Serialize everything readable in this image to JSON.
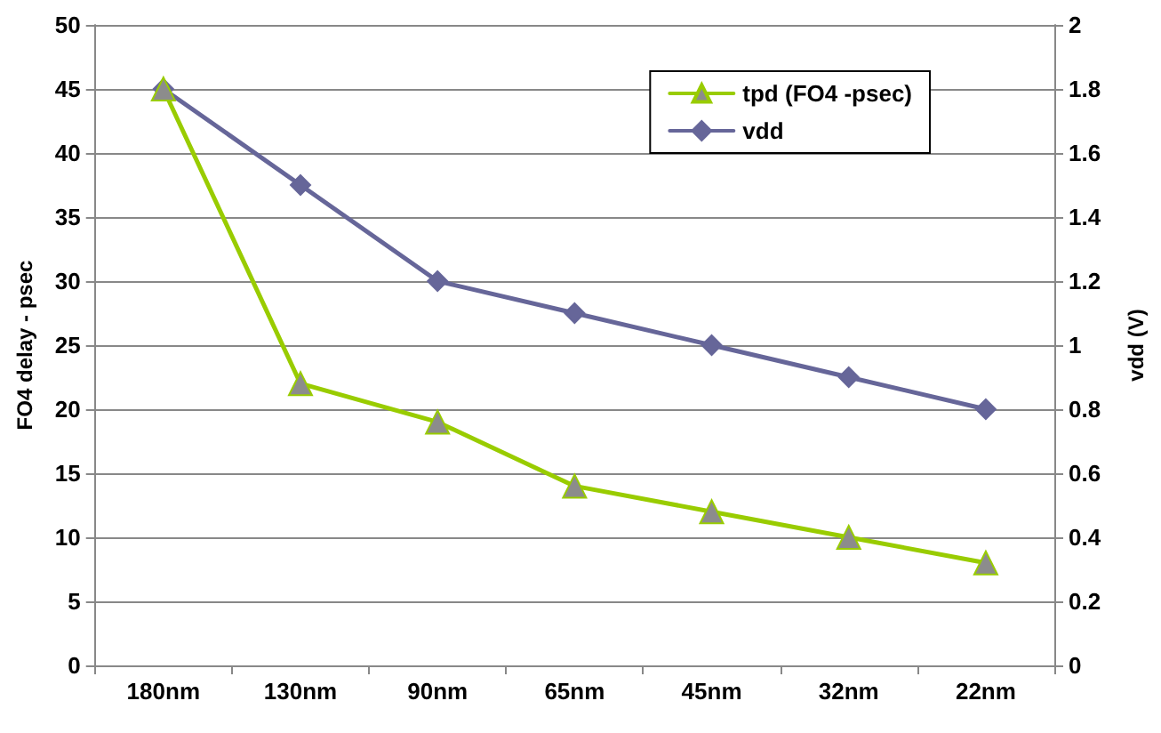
{
  "chart_data": {
    "type": "line",
    "categories": [
      "180nm",
      "130nm",
      "90nm",
      "65nm",
      "45nm",
      "32nm",
      "22nm"
    ],
    "ylabel": "FO4 delay - psec",
    "y2label": "vdd (V)",
    "ylim": [
      0,
      50
    ],
    "yticks": [
      0,
      5,
      10,
      15,
      20,
      25,
      30,
      35,
      40,
      45,
      50
    ],
    "y2lim": [
      0,
      2
    ],
    "y2ticks": [
      0,
      0.2,
      0.4,
      0.6,
      0.8,
      1,
      1.2,
      1.4,
      1.6,
      1.8,
      2
    ],
    "grid": "y",
    "legend": "top right",
    "series": [
      {
        "name": "tpd (FO4 -psec)",
        "color": "#99cc00",
        "marker": "triangle",
        "values": [
          45,
          22,
          19,
          14,
          12,
          10,
          8
        ]
      },
      {
        "name": "vdd",
        "color": "#666699",
        "marker": "diamond",
        "axis": "y2",
        "values": [
          1.8,
          1.5,
          1.2,
          1.1,
          1.0,
          0.9,
          0.8
        ]
      }
    ]
  }
}
